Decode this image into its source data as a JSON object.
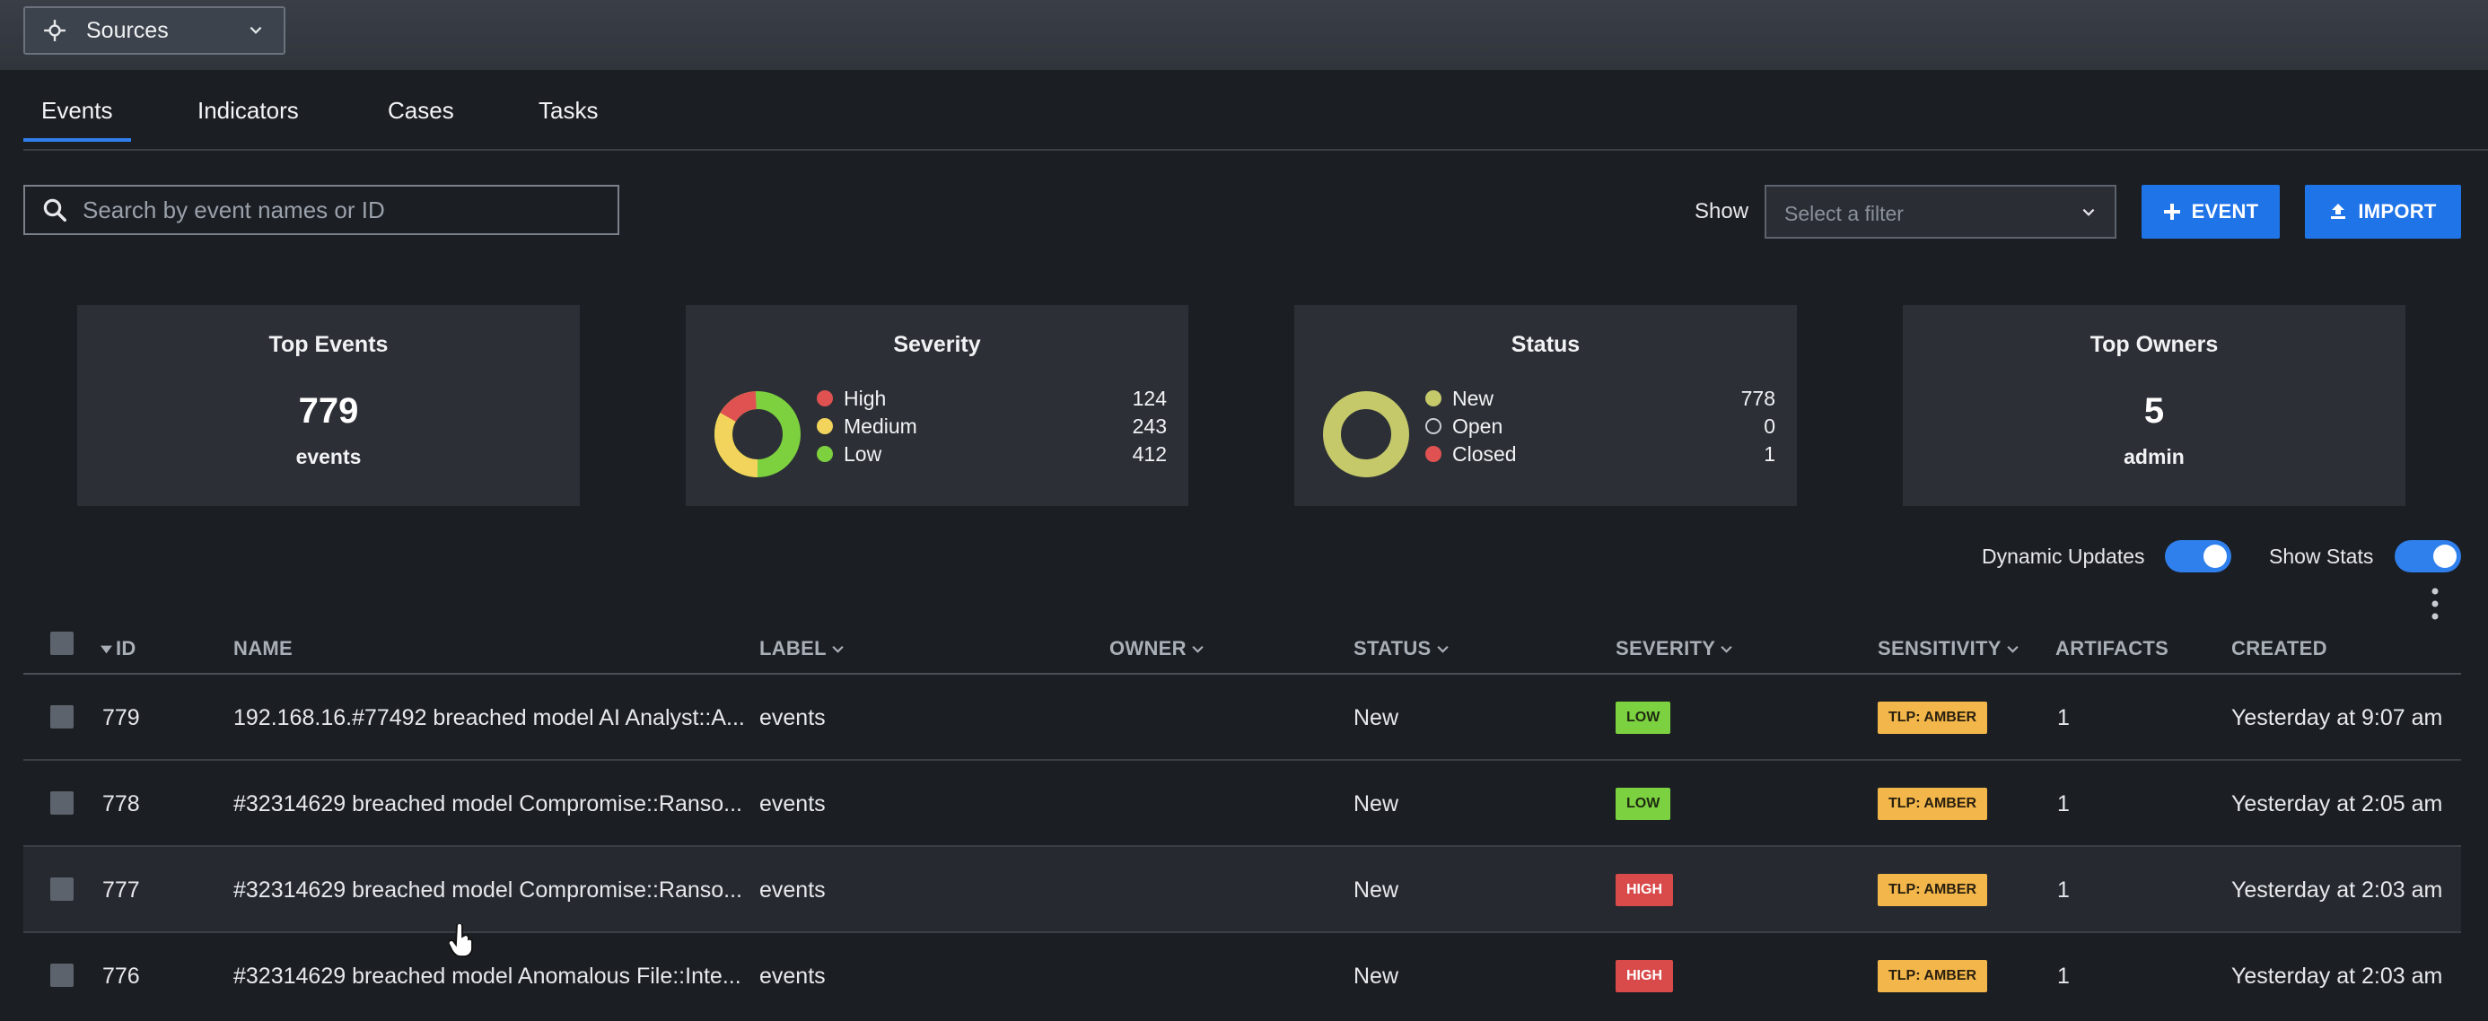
{
  "topbar": {
    "sources_label": "Sources"
  },
  "tabs": [
    "Events",
    "Indicators",
    "Cases",
    "Tasks"
  ],
  "search": {
    "placeholder": "Search by event names or ID"
  },
  "filter": {
    "show_label": "Show",
    "placeholder": "Select a filter"
  },
  "buttons": {
    "event": "EVENT",
    "import": "IMPORT"
  },
  "cards": {
    "top_events": {
      "title": "Top Events",
      "value": "779",
      "sub": "events"
    },
    "severity": {
      "title": "Severity",
      "items": [
        {
          "label": "High",
          "value": "124",
          "color": "#e05252"
        },
        {
          "label": "Medium",
          "value": "243",
          "color": "#f2d45c"
        },
        {
          "label": "Low",
          "value": "412",
          "color": "#7dd13f"
        }
      ]
    },
    "status": {
      "title": "Status",
      "items": [
        {
          "label": "New",
          "value": "778",
          "color": "#c5c96a"
        },
        {
          "label": "Open",
          "value": "0",
          "color": "#2c3036"
        },
        {
          "label": "Closed",
          "value": "1",
          "color": "#e05252"
        }
      ]
    },
    "top_owners": {
      "title": "Top Owners",
      "value": "5",
      "sub": "admin"
    }
  },
  "toggles": {
    "dynamic_updates": "Dynamic Updates",
    "show_stats": "Show Stats"
  },
  "table": {
    "headers": {
      "id": "ID",
      "name": "NAME",
      "label": "LABEL",
      "owner": "OWNER",
      "status": "STATUS",
      "severity": "SEVERITY",
      "sensitivity": "SENSITIVITY",
      "artifacts": "ARTIFACTS",
      "created": "CREATED"
    },
    "rows": [
      {
        "id": "779",
        "name": "192.168.16.#77492 breached model AI Analyst::A...",
        "label": "events",
        "owner": "",
        "status": "New",
        "severity": "LOW",
        "sensitivity": "TLP: AMBER",
        "artifacts": "1",
        "created": "Yesterday at 9:07 am"
      },
      {
        "id": "778",
        "name": "#32314629 breached model Compromise::Ranso...",
        "label": "events",
        "owner": "",
        "status": "New",
        "severity": "LOW",
        "sensitivity": "TLP: AMBER",
        "artifacts": "1",
        "created": "Yesterday at 2:05 am"
      },
      {
        "id": "777",
        "name": "#32314629 breached model Compromise::Ranso...",
        "label": "events",
        "owner": "",
        "status": "New",
        "severity": "HIGH",
        "sensitivity": "TLP: AMBER",
        "artifacts": "1",
        "created": "Yesterday at 2:03 am"
      },
      {
        "id": "776",
        "name": "#32314629 breached model Anomalous File::Inte...",
        "label": "events",
        "owner": "",
        "status": "New",
        "severity": "HIGH",
        "sensitivity": "TLP: AMBER",
        "artifacts": "1",
        "created": "Yesterday at 2:03 am"
      }
    ]
  }
}
